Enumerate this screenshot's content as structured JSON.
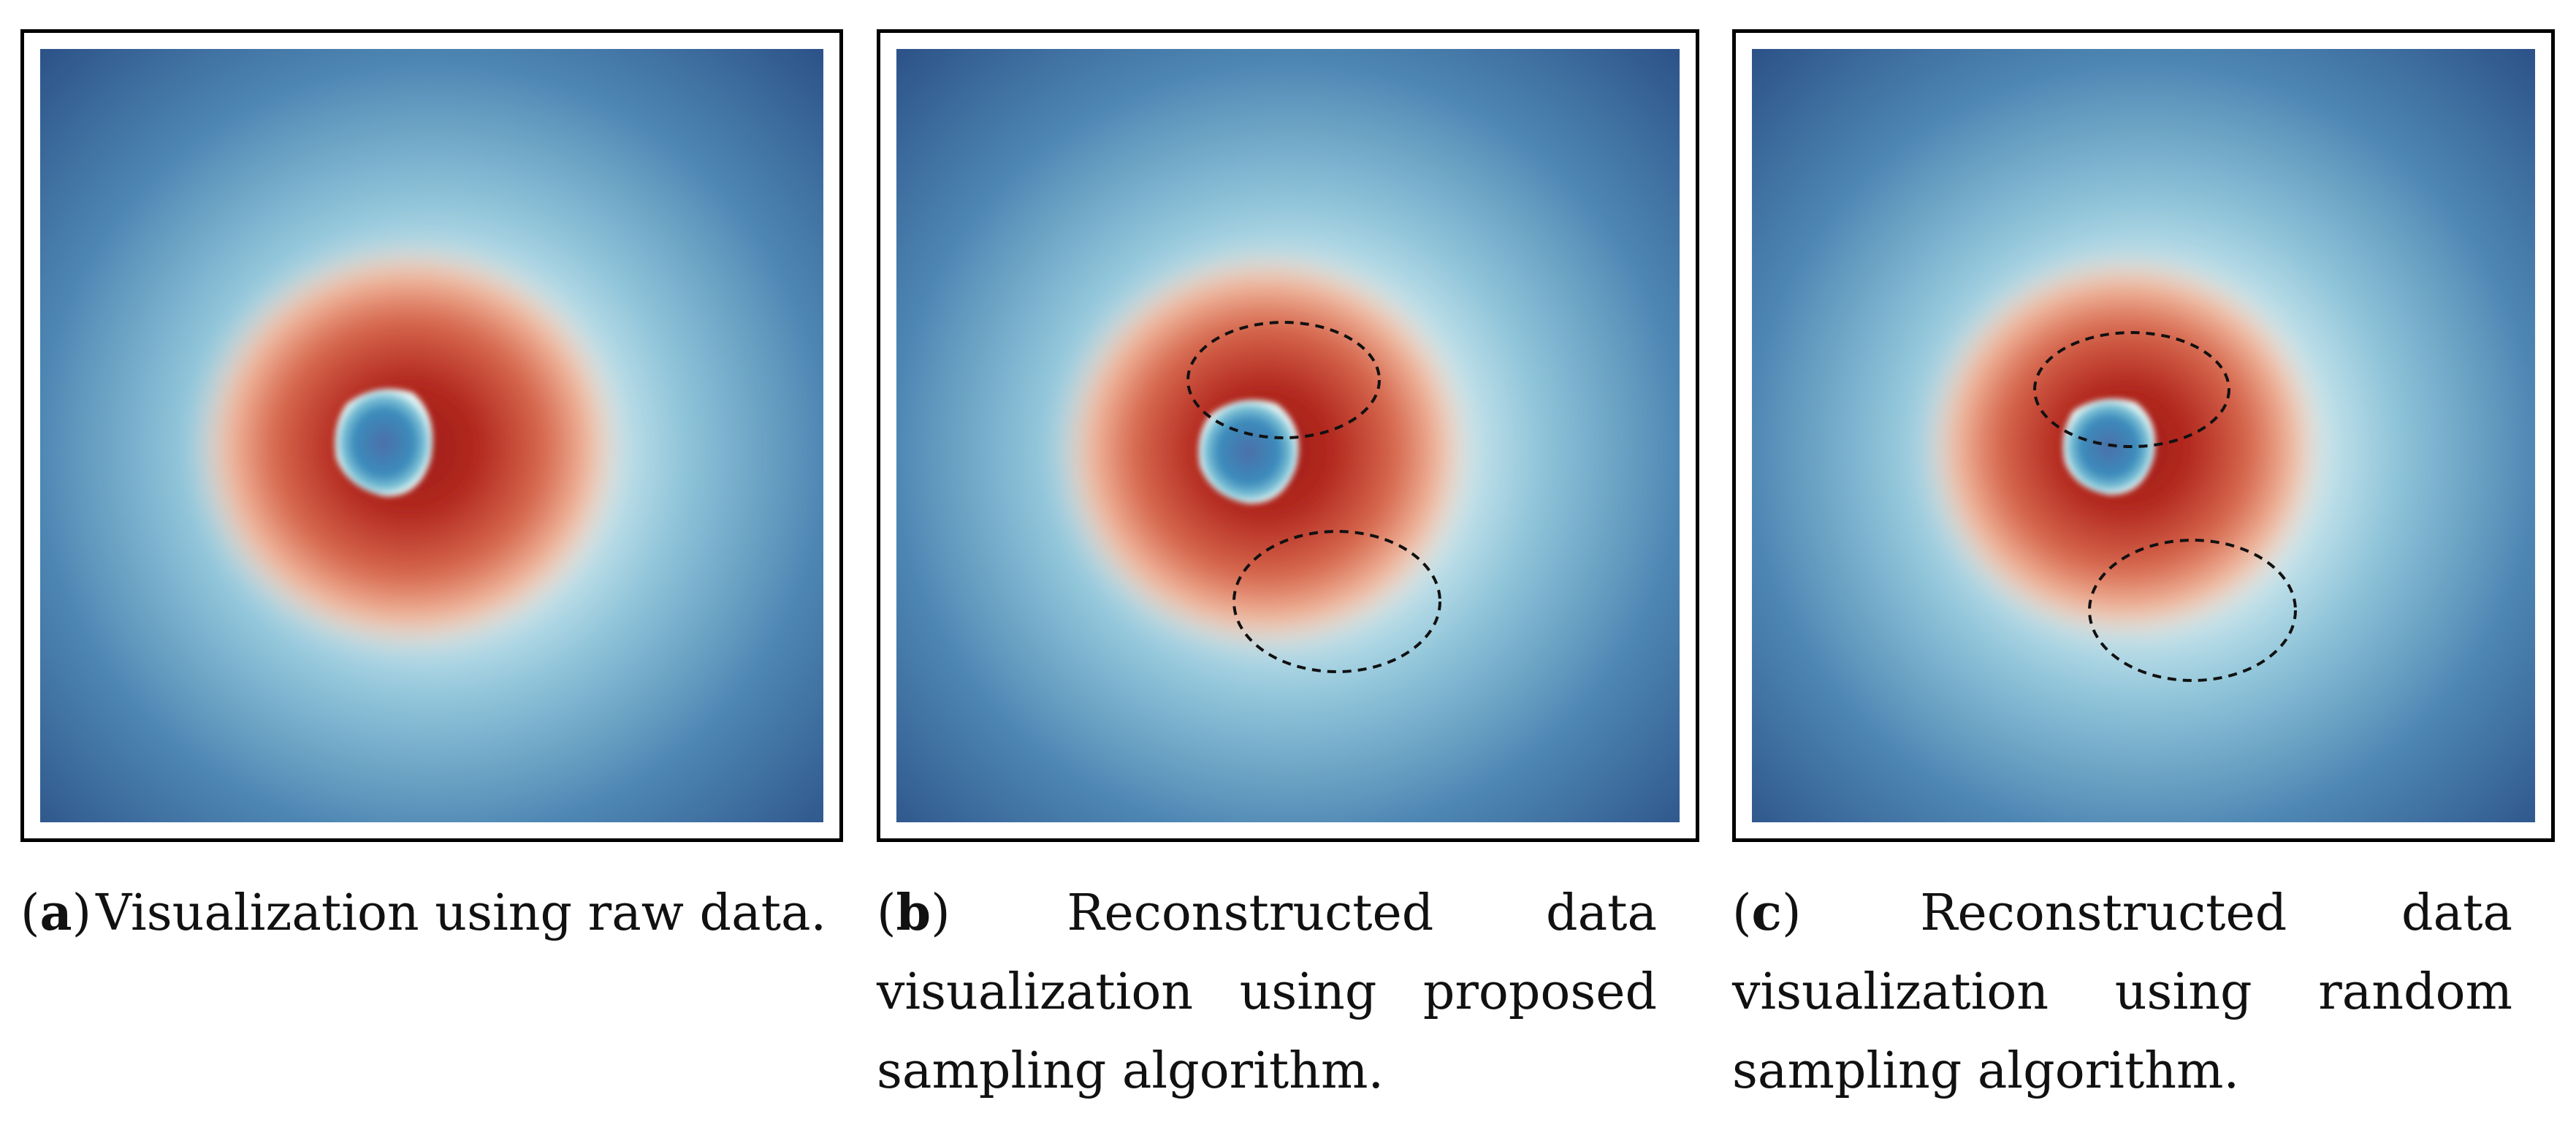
{
  "panels": [
    {
      "label": "a",
      "caption": "Visualization using raw data."
    },
    {
      "label": "b",
      "caption": "Reconstructed data visualization using proposed sampling algorithm."
    },
    {
      "label": "c",
      "caption": "Reconstructed data visualization using random sampling algorithm."
    }
  ],
  "colormap": {
    "outer": "#2f5b8f",
    "mid": "#6aa9c9",
    "light": "#e6f4f5",
    "warm": "#e08a6e",
    "core": "#b0231f",
    "eye": "#3f7fae"
  }
}
